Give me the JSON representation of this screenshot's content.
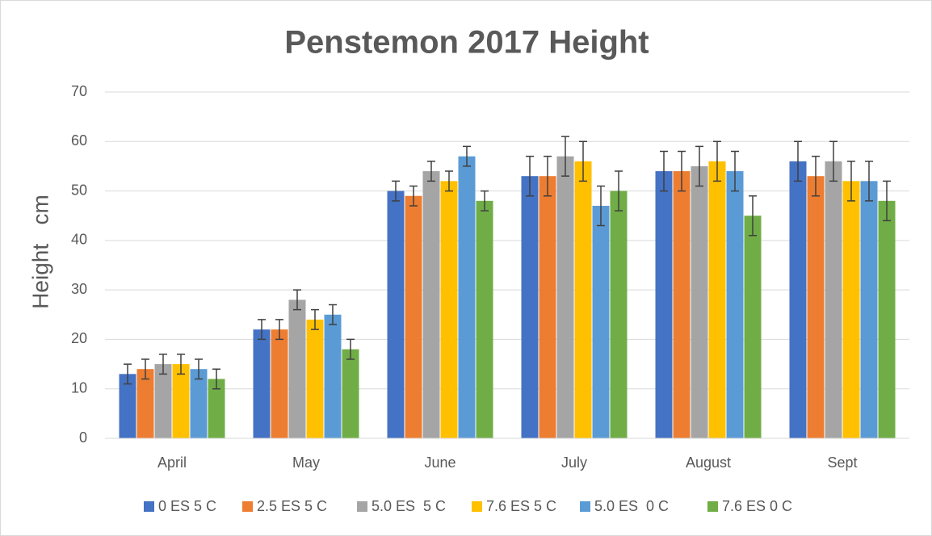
{
  "chart_data": {
    "type": "bar",
    "title": "Penstemon 2017 Height",
    "y_label": "Height   cm",
    "categories": [
      "April",
      "May",
      "June",
      "July",
      "August",
      "Sept"
    ],
    "series": [
      {
        "name": "0 ES 5 C",
        "color": "#4472c4",
        "values": [
          13,
          22,
          50,
          53,
          54,
          56
        ],
        "errors": [
          2,
          2,
          2,
          4,
          4,
          4
        ]
      },
      {
        "name": "2.5 ES 5 C",
        "color": "#ed7d31",
        "values": [
          14,
          22,
          49,
          53,
          54,
          53
        ],
        "errors": [
          2,
          2,
          2,
          4,
          4,
          4
        ]
      },
      {
        "name": "5.0 ES  5 C",
        "color": "#a5a5a5",
        "values": [
          15,
          28,
          54,
          57,
          55,
          56
        ],
        "errors": [
          2,
          2,
          2,
          4,
          4,
          4
        ]
      },
      {
        "name": "7.6 ES 5 C",
        "color": "#ffc000",
        "values": [
          15,
          24,
          52,
          56,
          56,
          52
        ],
        "errors": [
          2,
          2,
          2,
          4,
          4,
          4
        ]
      },
      {
        "name": "5.0 ES  0 C",
        "color": "#5b9bd5",
        "values": [
          14,
          25,
          57,
          47,
          54,
          52
        ],
        "errors": [
          2,
          2,
          2,
          4,
          4,
          4
        ]
      },
      {
        "name": "7.6 ES 0 C",
        "color": "#70ad47",
        "values": [
          12,
          18,
          48,
          50,
          45,
          48
        ],
        "errors": [
          2,
          2,
          2,
          4,
          4,
          4
        ]
      }
    ],
    "ylim": [
      0,
      70
    ],
    "yticks": [
      0,
      10,
      20,
      30,
      40,
      50,
      60,
      70
    ],
    "grid": true,
    "legend": "bottom"
  }
}
